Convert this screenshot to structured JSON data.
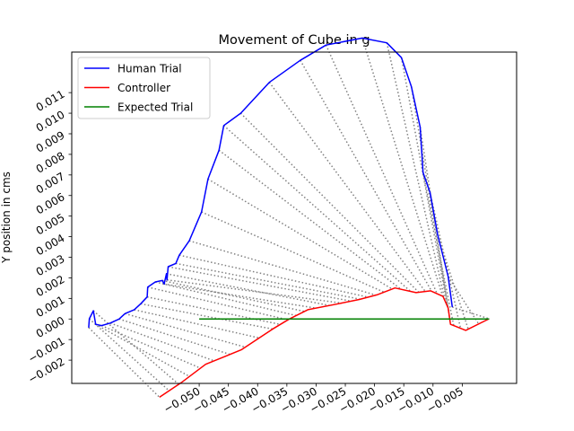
{
  "chart_data": {
    "type": "line",
    "title": "Movement of Cube in g",
    "xlabel": "",
    "ylabel": "Y position in cms",
    "xlim": [
      -0.0718,
      0.0043
    ],
    "ylim": [
      -0.00313,
      0.01297
    ],
    "x_ticks": [
      -0.05,
      -0.045,
      -0.04,
      -0.035,
      -0.03,
      -0.025,
      -0.02,
      -0.015,
      -0.01,
      -0.005
    ],
    "x_tick_labels": [
      "−0.050",
      "−0.045",
      "−0.040",
      "−0.035",
      "−0.030",
      "−0.025",
      "−0.020",
      "−0.015",
      "−0.010",
      "−0.005"
    ],
    "y_ticks": [
      -0.002,
      -0.001,
      0.0,
      0.001,
      0.002,
      0.003,
      0.004,
      0.005,
      0.006,
      0.007,
      0.008,
      0.009,
      0.01,
      0.011
    ],
    "y_tick_labels": [
      "−0.002",
      "−0.001",
      "0.000",
      "0.001",
      "0.002",
      "0.003",
      "0.004",
      "0.005",
      "0.006",
      "0.007",
      "0.008",
      "0.009",
      "0.010",
      "0.011"
    ],
    "grid": false,
    "legend_position": "upper left",
    "series": [
      {
        "name": "Human Trial",
        "color": "#0000ff",
        "x": [
          -0.0067,
          -0.0074,
          -0.0092,
          -0.0105,
          -0.0117,
          -0.0122,
          -0.0137,
          -0.0154,
          -0.0179,
          -0.0221,
          -0.0283,
          -0.0327,
          -0.038,
          -0.0429,
          -0.0458,
          -0.0466,
          -0.0485,
          -0.0496,
          -0.0517,
          -0.0534,
          -0.054,
          -0.0553,
          -0.0555,
          -0.0556,
          -0.056,
          -0.0563,
          -0.0575,
          -0.0588,
          -0.0589,
          -0.06,
          -0.0611,
          -0.0627,
          -0.0637,
          -0.0652,
          -0.0667,
          -0.0677,
          -0.0681,
          -0.0688,
          -0.0689
        ],
        "y": [
          0.00058,
          0.00206,
          0.00409,
          0.00614,
          0.00712,
          0.00932,
          0.01129,
          0.0127,
          0.01342,
          0.01365,
          0.01331,
          0.01257,
          0.0115,
          0.01,
          0.0094,
          0.0082,
          0.0068,
          0.0052,
          0.0038,
          0.0031,
          0.0027,
          0.00254,
          0.0019,
          0.0022,
          0.0017,
          0.00187,
          0.0018,
          0.00155,
          0.00107,
          0.00074,
          0.00045,
          0.00026,
          0.0,
          -0.0002,
          -0.00032,
          -0.00026,
          0.0004,
          1e-05,
          -0.00042
        ]
      },
      {
        "name": "Controller",
        "color": "#ff0000",
        "x": [
          -0.0004,
          -0.0044,
          -0.007,
          -0.0074,
          -0.0083,
          -0.0104,
          -0.0129,
          -0.0165,
          -0.0196,
          -0.0226,
          -0.0262,
          -0.0314,
          -0.0346,
          -0.0375,
          -0.0428,
          -0.0489,
          -0.0531,
          -0.0568
        ],
        "y": [
          1e-05,
          -0.00055,
          -0.00026,
          0.00053,
          0.0011,
          0.00137,
          0.00128,
          0.00151,
          0.00117,
          0.00095,
          0.00074,
          0.00045,
          0.0,
          -0.0005,
          -0.0015,
          -0.0022,
          -0.0031,
          -0.0038
        ]
      },
      {
        "name": "Expected Trial",
        "color": "#008000",
        "x": [
          -0.05,
          -0.0004
        ],
        "y": [
          0.0,
          0.0
        ]
      }
    ]
  }
}
